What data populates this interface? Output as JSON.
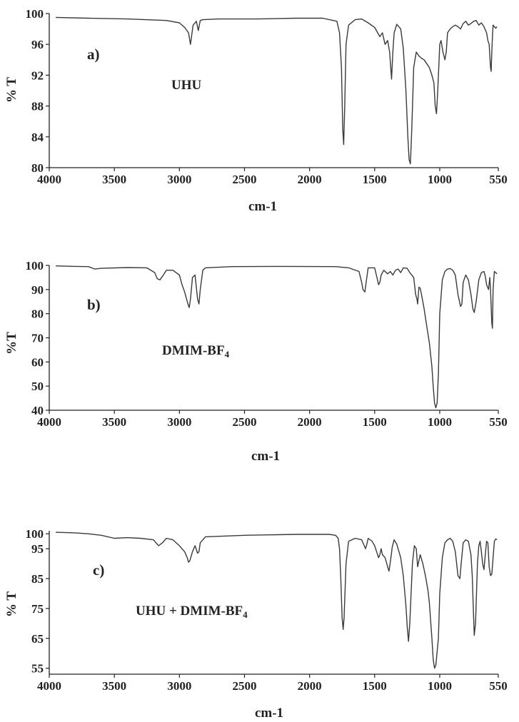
{
  "page_colors": {
    "line": "#3a3a3a",
    "axis": "#222222",
    "background": "#ffffff"
  },
  "chart_data": [
    {
      "type": "line",
      "panel_letter": "a)",
      "title": "UHU",
      "xlabel": "cm-1",
      "ylabel": "% T",
      "x_reversed": true,
      "xlim": [
        4000,
        550
      ],
      "ylim": [
        80,
        100
      ],
      "x_ticks": [
        4000,
        3500,
        3000,
        2500,
        2000,
        1500,
        1000,
        550
      ],
      "x_tick_labels": [
        "4000",
        "3500",
        "3000",
        "2500",
        "2000",
        "1500",
        "1000",
        "550"
      ],
      "y_ticks": [
        80,
        84,
        88,
        92,
        96,
        100
      ],
      "y_tick_labels": [
        "80",
        "84",
        "88",
        "92",
        "96",
        "100"
      ],
      "grid": false,
      "series": [
        {
          "x": [
            3950,
            3700,
            3400,
            3100,
            3000,
            2960,
            2930,
            2915,
            2895,
            2870,
            2855,
            2840,
            2820,
            2700,
            2400,
            2100,
            1900,
            1790,
            1770,
            1755,
            1745,
            1738,
            1730,
            1720,
            1700,
            1650,
            1600,
            1550,
            1500,
            1460,
            1440,
            1420,
            1400,
            1385,
            1370,
            1360,
            1350,
            1330,
            1300,
            1280,
            1260,
            1245,
            1235,
            1225,
            1215,
            1200,
            1180,
            1160,
            1140,
            1120,
            1100,
            1080,
            1060,
            1045,
            1035,
            1025,
            1015,
            1000,
            990,
            975,
            960,
            950,
            940,
            920,
            900,
            880,
            860,
            840,
            820,
            800,
            780,
            760,
            740,
            720,
            700,
            680,
            660,
            640,
            630,
            620,
            610,
            605,
            600,
            595,
            590,
            580,
            570,
            560
          ],
          "y": [
            99.5,
            99.4,
            99.3,
            99.1,
            98.8,
            98.2,
            97.5,
            96,
            98.5,
            99,
            97.8,
            99.1,
            99.2,
            99.3,
            99.3,
            99.4,
            99.4,
            99,
            97.5,
            93,
            85,
            83,
            88,
            96,
            98.5,
            99.2,
            99.3,
            98.8,
            98.2,
            97,
            97.5,
            96,
            96.5,
            95,
            91.5,
            95,
            97.5,
            98.6,
            98,
            95.5,
            90,
            84,
            81,
            80.5,
            85,
            93,
            95,
            94.5,
            94.2,
            94,
            93.5,
            93,
            92,
            91,
            88,
            87,
            90,
            96,
            96.5,
            95,
            94,
            95,
            97.5,
            98,
            98.3,
            98.5,
            98.3,
            98,
            98.7,
            99,
            98.5,
            98.7,
            99,
            99.1,
            98.5,
            98.8,
            98.3,
            97.5,
            96.5,
            96,
            93,
            92.5,
            95,
            97,
            98.5,
            98.3,
            98.1,
            98.3
          ]
        }
      ]
    },
    {
      "type": "line",
      "panel_letter": "b)",
      "title_main": "DMIM-BF",
      "title_sub": "4",
      "xlabel": "cm-1",
      "ylabel": "%T",
      "x_reversed": true,
      "xlim": [
        4000,
        550
      ],
      "ylim": [
        40,
        100
      ],
      "x_ticks": [
        4000,
        3500,
        3000,
        2500,
        2000,
        1500,
        1000,
        550
      ],
      "x_tick_labels": [
        "4000",
        "3500",
        "3000",
        "2500",
        "2000",
        "1500",
        "1000",
        "550"
      ],
      "y_ticks": [
        40,
        50,
        60,
        70,
        80,
        90,
        100
      ],
      "y_tick_labels": [
        "40",
        "50",
        "60",
        "70",
        "80",
        "90",
        "100"
      ],
      "grid": false,
      "series": [
        {
          "x": [
            3950,
            3800,
            3700,
            3650,
            3600,
            3400,
            3250,
            3190,
            3170,
            3150,
            3130,
            3100,
            3050,
            3000,
            2980,
            2960,
            2940,
            2925,
            2915,
            2900,
            2880,
            2860,
            2850,
            2840,
            2820,
            2800,
            2600,
            2200,
            1800,
            1700,
            1620,
            1600,
            1590,
            1575,
            1565,
            1550,
            1500,
            1480,
            1470,
            1460,
            1450,
            1430,
            1400,
            1380,
            1360,
            1340,
            1320,
            1300,
            1280,
            1250,
            1230,
            1200,
            1185,
            1175,
            1170,
            1160,
            1150,
            1140,
            1120,
            1100,
            1080,
            1060,
            1050,
            1040,
            1030,
            1020,
            1010,
            1000,
            980,
            960,
            940,
            920,
            900,
            880,
            860,
            840,
            830,
            820,
            800,
            780,
            760,
            745,
            735,
            720,
            700,
            680,
            660,
            650,
            640,
            625,
            615,
            610,
            600,
            595,
            590,
            580,
            560
          ],
          "y": [
            99.8,
            99.6,
            99.5,
            98.5,
            98.8,
            99.1,
            99,
            97,
            94.5,
            94,
            95.5,
            98,
            98,
            96,
            92,
            89,
            85,
            82.5,
            86,
            95,
            96,
            86,
            84,
            90,
            98,
            99,
            99.5,
            99.6,
            99.5,
            99,
            97.5,
            93,
            90,
            89,
            93,
            99,
            99,
            94.5,
            92,
            93,
            96,
            98,
            96.5,
            97.5,
            96,
            98,
            98.5,
            97,
            99,
            98.8,
            97,
            95,
            88,
            86,
            84,
            91,
            90.5,
            88,
            82,
            75,
            68,
            58,
            50,
            43,
            41,
            43,
            55,
            80,
            94,
            97.5,
            98.5,
            98.7,
            98,
            96,
            88,
            83,
            84,
            93,
            96,
            94,
            88,
            82,
            80.5,
            85,
            94,
            97,
            97.5,
            95.5,
            92,
            90,
            95,
            90,
            76,
            74,
            90,
            97.5,
            96.5
          ]
        }
      ]
    },
    {
      "type": "line",
      "panel_letter": "c)",
      "title_main": "UHU + DMIM-BF",
      "title_sub": "4",
      "xlabel": "cm-1",
      "ylabel": "% T",
      "x_reversed": true,
      "xlim": [
        4000,
        550
      ],
      "ylim": [
        53,
        101
      ],
      "x_ticks": [
        4000,
        3500,
        3000,
        2500,
        2000,
        1500,
        1000,
        550
      ],
      "x_tick_labels": [
        "4000",
        "3500",
        "3000",
        "2500",
        "2000",
        "1500",
        "1000",
        "550"
      ],
      "y_ticks": [
        55,
        65,
        75,
        85,
        95,
        100
      ],
      "y_tick_labels": [
        "55",
        "65",
        "75",
        "85",
        "95",
        "100"
      ],
      "grid": false,
      "series": [
        {
          "x": [
            3950,
            3800,
            3700,
            3600,
            3500,
            3400,
            3300,
            3200,
            3160,
            3130,
            3100,
            3050,
            3000,
            2960,
            2940,
            2930,
            2920,
            2900,
            2880,
            2860,
            2850,
            2840,
            2800,
            2500,
            2100,
            1850,
            1800,
            1780,
            1770,
            1760,
            1750,
            1742,
            1735,
            1720,
            1700,
            1650,
            1600,
            1580,
            1570,
            1560,
            1550,
            1520,
            1500,
            1470,
            1460,
            1450,
            1440,
            1420,
            1400,
            1390,
            1375,
            1365,
            1350,
            1330,
            1300,
            1280,
            1260,
            1250,
            1240,
            1230,
            1210,
            1195,
            1180,
            1170,
            1160,
            1150,
            1130,
            1110,
            1090,
            1080,
            1070,
            1060,
            1050,
            1040,
            1030,
            1010,
            1000,
            980,
            960,
            940,
            920,
            900,
            880,
            860,
            845,
            835,
            820,
            800,
            780,
            760,
            750,
            742,
            735,
            725,
            710,
            700,
            690,
            680,
            670,
            660,
            650,
            640,
            630,
            620,
            610,
            600,
            590,
            580,
            570,
            560
          ],
          "y": [
            100.5,
            100.3,
            100,
            99.5,
            98.5,
            98.7,
            98.5,
            98,
            96,
            97,
            98.5,
            98,
            96,
            94,
            92,
            90.5,
            91,
            94,
            96,
            93.5,
            94,
            97,
            99,
            99.5,
            99.8,
            99.8,
            99.5,
            98.5,
            95,
            85,
            72,
            68,
            72,
            90,
            97.5,
            98.5,
            98,
            96,
            95,
            96.5,
            98.5,
            97.5,
            96,
            92,
            93,
            95,
            93,
            92,
            89,
            87.5,
            92,
            95.5,
            98,
            96.5,
            92,
            86,
            76,
            69,
            64,
            70,
            90,
            96,
            95,
            89,
            91,
            93,
            90,
            86,
            81,
            77,
            71,
            65,
            58,
            55,
            56,
            65,
            80,
            92,
            97,
            98,
            98.5,
            97.5,
            94,
            86,
            85,
            90,
            97,
            98,
            97.5,
            93,
            86,
            75,
            66,
            70,
            90,
            96,
            97.5,
            94,
            90,
            88,
            93,
            97.5,
            97,
            89,
            86,
            86.5,
            92,
            97.5,
            98.3,
            98
          ]
        }
      ]
    }
  ]
}
